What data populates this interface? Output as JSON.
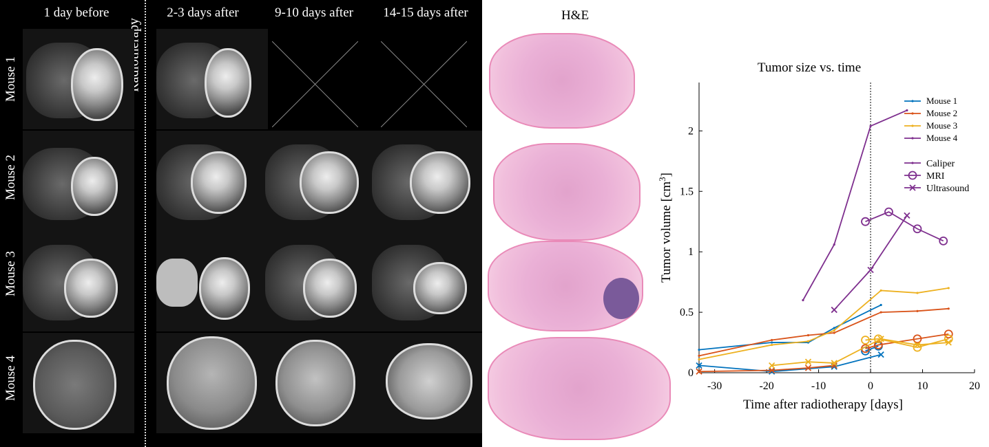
{
  "mri": {
    "columns": [
      "1 day before",
      "Radiotherapy",
      "2-3 days after",
      "9-10 days after",
      "14-15 days after"
    ],
    "rows": [
      "Mouse 1",
      "Mouse 2",
      "Mouse 3",
      "Mouse 4"
    ]
  },
  "histology": {
    "title": "H&E"
  },
  "chart_data": {
    "type": "line",
    "title": "Tumor size vs. time",
    "xlabel": "Time after radiotherapy [days]",
    "ylabel": "Tumor volume [cm",
    "ylabel_sup": "3",
    "ylabel_end": "]",
    "xlim": [
      -33,
      20
    ],
    "ylim": [
      0,
      2.4
    ],
    "xticks": [
      -30,
      -20,
      -10,
      0,
      10,
      20
    ],
    "yticks": [
      0,
      0.5,
      1,
      1.5,
      2
    ],
    "vline_x": 0,
    "legend_mice": [
      "Mouse 1",
      "Mouse 2",
      "Mouse 3",
      "Mouse 4"
    ],
    "legend_methods": [
      "Caliper",
      "MRI",
      "Ultrasound"
    ],
    "colors": {
      "Mouse 1": "#0072BD",
      "Mouse 2": "#D95319",
      "Mouse 3": "#EDB120",
      "Mouse 4": "#7E2F8E"
    },
    "series": [
      {
        "mouse": "Mouse 1",
        "method": "Caliper",
        "x": [
          -33,
          -19,
          -12,
          -7,
          2
        ],
        "y": [
          0.19,
          0.25,
          0.25,
          0.37,
          0.56
        ]
      },
      {
        "mouse": "Mouse 2",
        "method": "Caliper",
        "x": [
          -33,
          -19,
          -12,
          -7,
          2,
          9,
          15
        ],
        "y": [
          0.14,
          0.27,
          0.31,
          0.33,
          0.5,
          0.51,
          0.53
        ]
      },
      {
        "mouse": "Mouse 3",
        "method": "Caliper",
        "x": [
          -33,
          -19,
          -12,
          -7,
          2,
          9,
          15
        ],
        "y": [
          0.11,
          0.23,
          0.26,
          0.35,
          0.68,
          0.66,
          0.7
        ]
      },
      {
        "mouse": "Mouse 4",
        "method": "Caliper",
        "x": [
          -13,
          -7,
          0,
          7
        ],
        "y": [
          0.6,
          1.06,
          2.04,
          2.17
        ]
      },
      {
        "mouse": "Mouse 1",
        "method": "MRI",
        "x": [
          -1,
          1.5
        ],
        "y": [
          0.18,
          0.22
        ]
      },
      {
        "mouse": "Mouse 2",
        "method": "MRI",
        "x": [
          -1,
          1.5,
          9,
          15
        ],
        "y": [
          0.2,
          0.23,
          0.28,
          0.32
        ]
      },
      {
        "mouse": "Mouse 3",
        "method": "MRI",
        "x": [
          -1,
          1.5,
          9,
          15
        ],
        "y": [
          0.27,
          0.28,
          0.21,
          0.28
        ]
      },
      {
        "mouse": "Mouse 4",
        "method": "MRI",
        "x": [
          -1,
          3.5,
          9,
          14
        ],
        "y": [
          1.25,
          1.33,
          1.19,
          1.09
        ]
      },
      {
        "mouse": "Mouse 1",
        "method": "Ultrasound",
        "x": [
          -33,
          -19,
          -7,
          2
        ],
        "y": [
          0.06,
          0.01,
          0.05,
          0.15
        ]
      },
      {
        "mouse": "Mouse 2",
        "method": "Ultrasound",
        "x": [
          -33,
          -19,
          -12,
          -7
        ],
        "y": [
          0.01,
          0.02,
          0.04,
          0.06
        ]
      },
      {
        "mouse": "Mouse 3",
        "method": "Ultrasound",
        "x": [
          -19,
          -12,
          -7,
          2,
          9,
          15
        ],
        "y": [
          0.06,
          0.09,
          0.08,
          0.28,
          0.23,
          0.25
        ]
      },
      {
        "mouse": "Mouse 4",
        "method": "Ultrasound",
        "x": [
          -7,
          0,
          7
        ],
        "y": [
          0.52,
          0.85,
          1.3
        ]
      }
    ]
  }
}
